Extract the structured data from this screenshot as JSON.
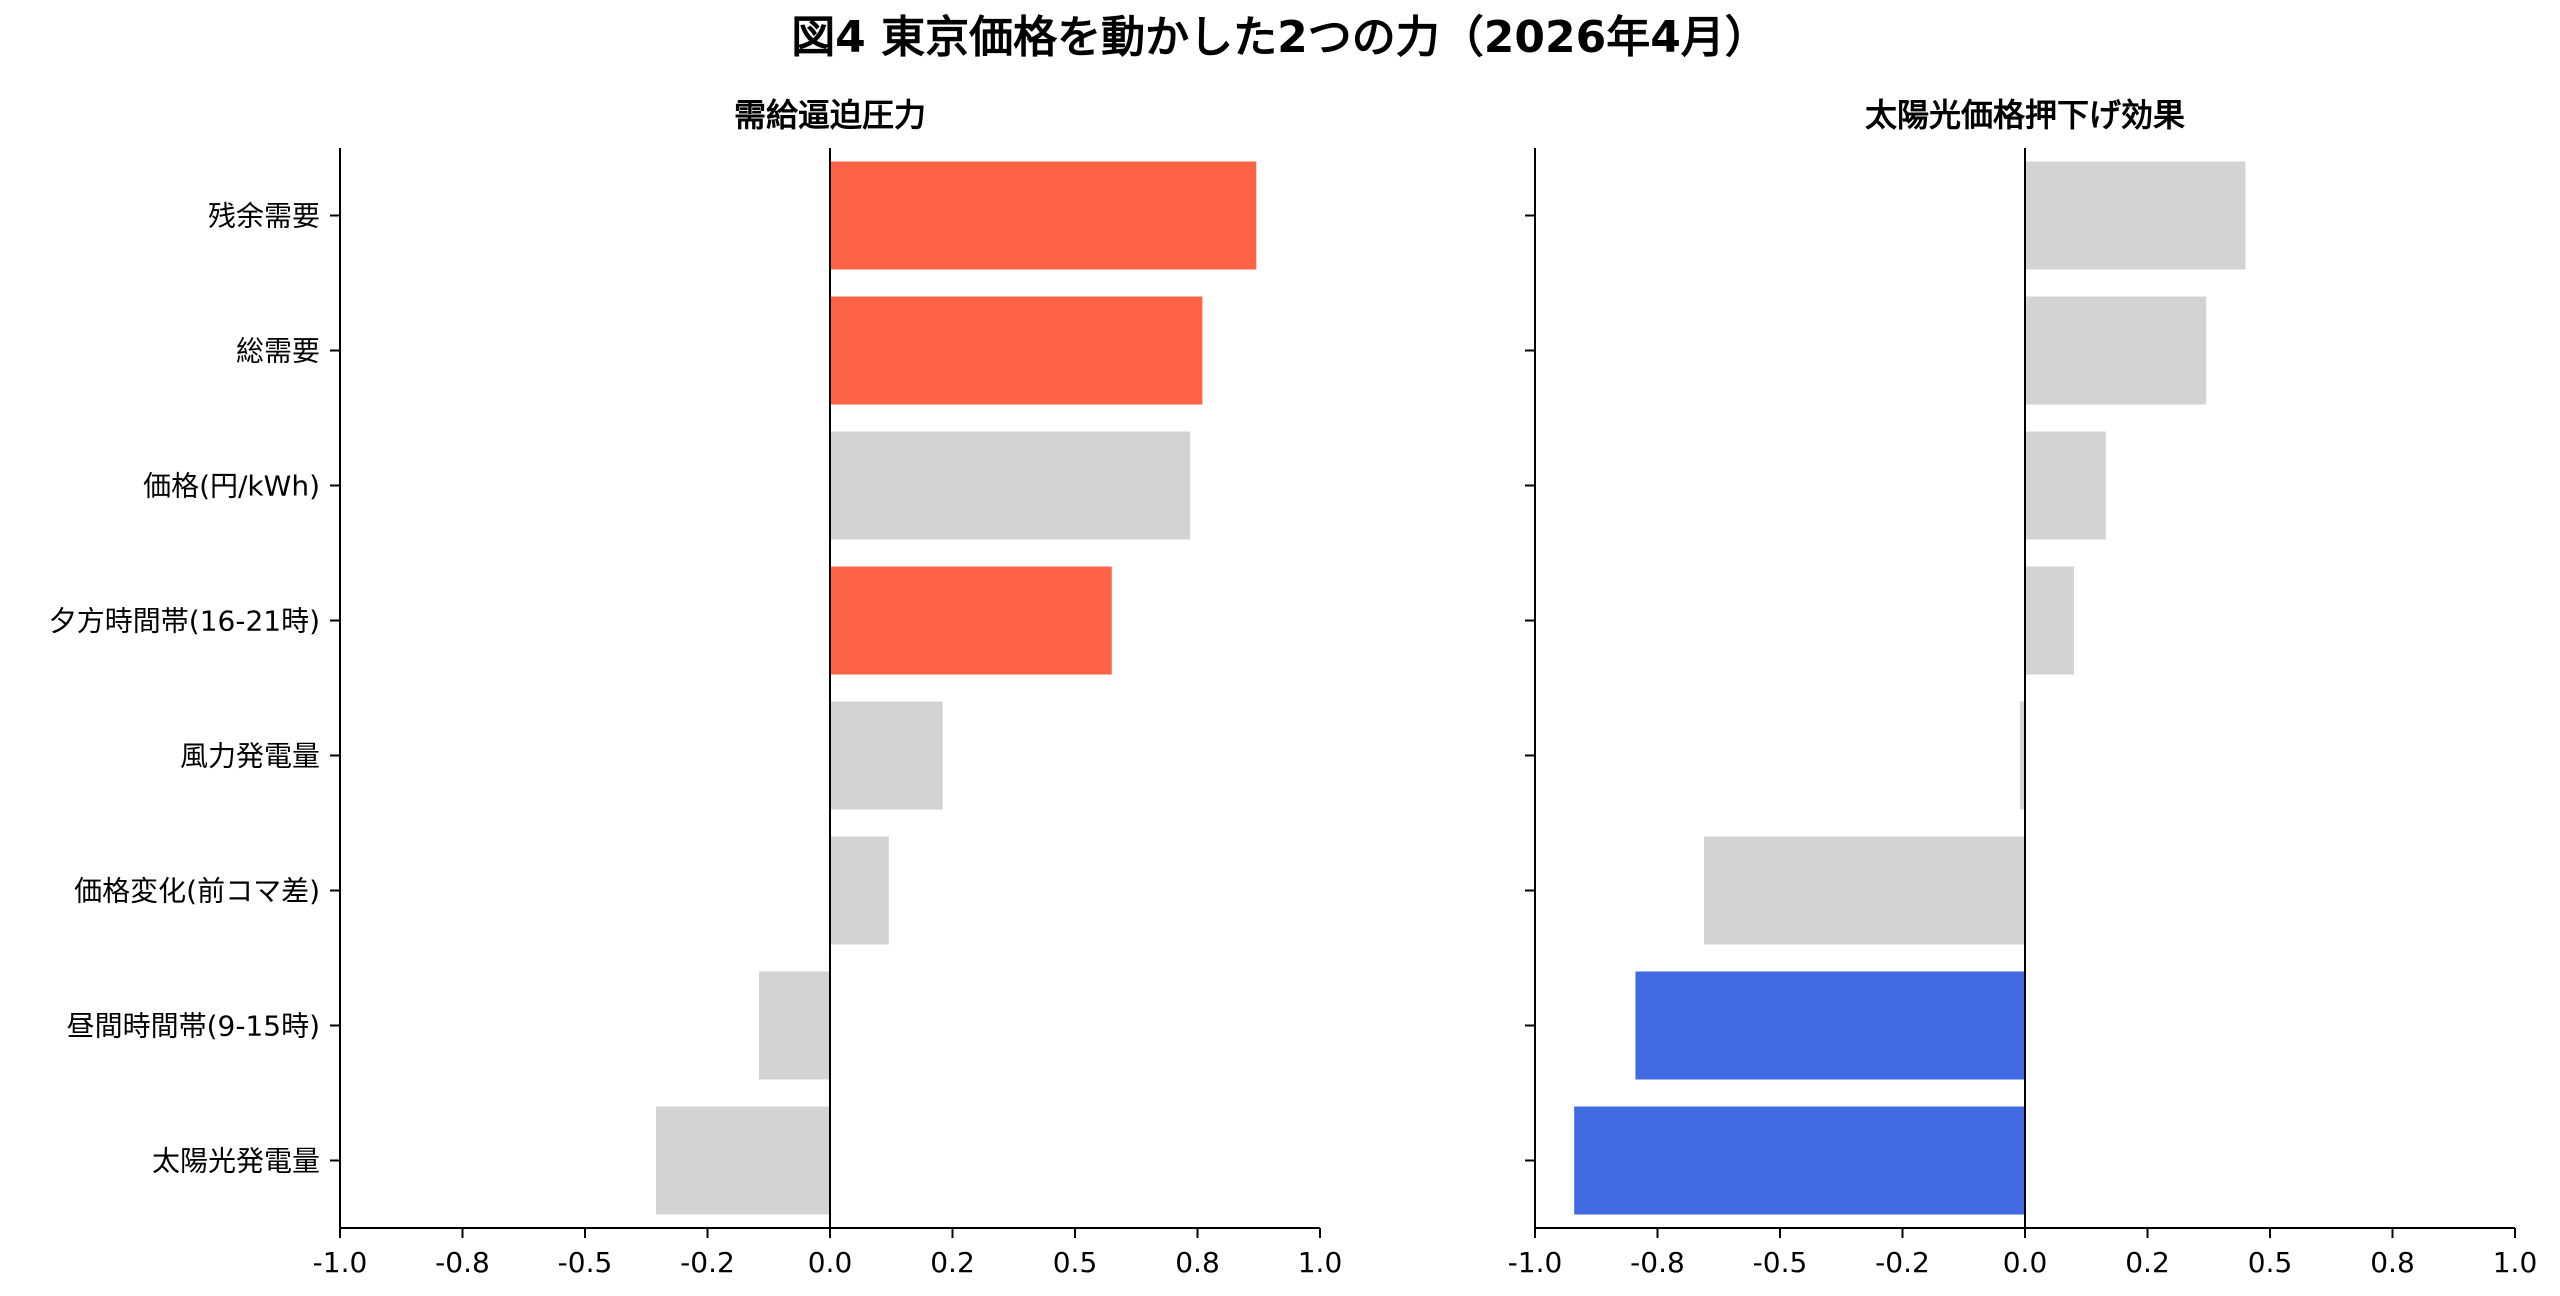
{
  "figure": {
    "title": "図4 東京価格を動かした2つの力（2026年4月）"
  },
  "chart_data": [
    {
      "type": "bar",
      "orientation": "horizontal",
      "title": "需給逼迫圧力",
      "categories": [
        "残余需要",
        "総需要",
        "価格(円/kWh)",
        "夕方時間帯(16-21時)",
        "風力発電量",
        "価格変化(前コマ差)",
        "昼間時間帯(9-15時)",
        "太陽光発電量"
      ],
      "values": [
        0.87,
        0.76,
        0.735,
        0.575,
        0.23,
        0.12,
        -0.145,
        -0.355
      ],
      "highlight": [
        true,
        true,
        false,
        true,
        false,
        false,
        false,
        false
      ],
      "highlight_color": "#ff6347",
      "base_color": "#d3d3d3",
      "xlim": [
        -1.0,
        1.0
      ],
      "xticks": [
        "-1.0",
        "-0.8",
        "-0.5",
        "-0.2",
        "0.0",
        "0.2",
        "0.5",
        "0.8",
        "1.0"
      ],
      "xlabel": "",
      "ylabel": ""
    },
    {
      "type": "bar",
      "orientation": "horizontal",
      "title": "太陽光価格押下げ効果",
      "categories": [
        "残余需要",
        "総需要",
        "価格(円/kWh)",
        "夕方時間帯(16-21時)",
        "風力発電量",
        "価格変化(前コマ差)",
        "昼間時間帯(9-15時)",
        "太陽光発電量"
      ],
      "values": [
        0.45,
        0.37,
        0.165,
        0.1,
        -0.01,
        -0.655,
        -0.795,
        -0.92
      ],
      "highlight": [
        false,
        false,
        false,
        false,
        false,
        false,
        true,
        true
      ],
      "highlight_color": "#4169e1",
      "base_color": "#d3d3d3",
      "xlim": [
        -1.0,
        1.0
      ],
      "xticks": [
        "-1.0",
        "-0.8",
        "-0.5",
        "-0.2",
        "0.0",
        "0.2",
        "0.5",
        "0.8",
        "1.0"
      ],
      "xlabel": "",
      "ylabel": ""
    }
  ]
}
